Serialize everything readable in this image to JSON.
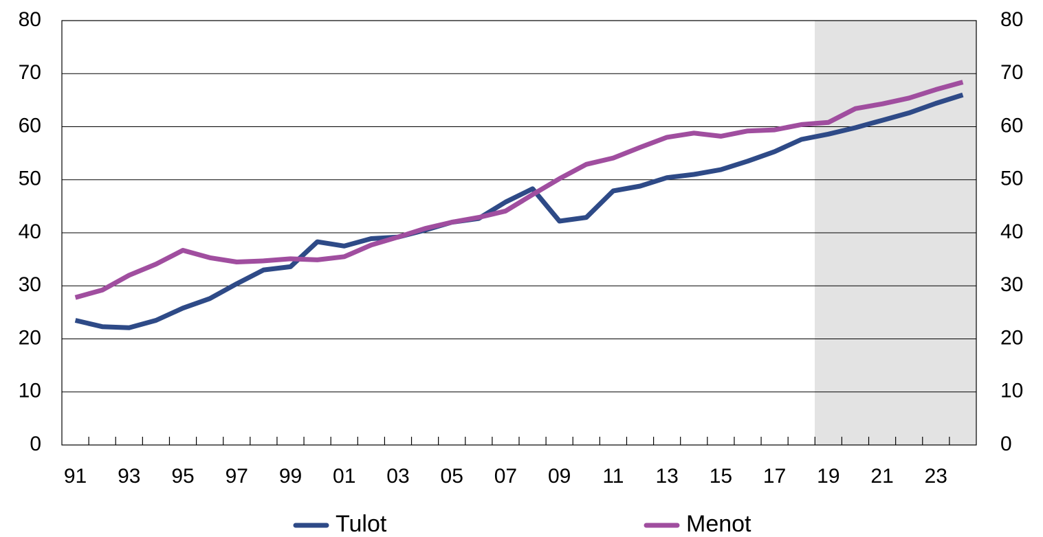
{
  "chart_data": {
    "type": "line",
    "categories": [
      "91",
      null,
      "93",
      null,
      "95",
      null,
      "97",
      null,
      "99",
      null,
      "01",
      null,
      "03",
      null,
      "05",
      null,
      "07",
      null,
      "09",
      null,
      "11",
      null,
      "13",
      null,
      "15",
      null,
      "17",
      null,
      "19",
      null,
      "21",
      null,
      "23",
      null
    ],
    "series": [
      {
        "name": "Tulot",
        "color": "#2e4a87",
        "values": [
          23.5,
          22.3,
          22.1,
          23.5,
          25.8,
          27.6,
          30.4,
          33.0,
          33.6,
          38.3,
          37.5,
          38.9,
          39.2,
          40.5,
          42.0,
          42.7,
          45.8,
          48.3,
          42.2,
          42.9,
          47.9,
          48.8,
          50.4,
          51.0,
          51.9,
          53.5,
          55.3,
          57.6,
          58.6,
          59.8,
          61.2,
          62.6,
          64.4,
          66.0
        ]
      },
      {
        "name": "Menot",
        "color": "#a04e9f",
        "values": [
          27.8,
          29.2,
          32.0,
          34.1,
          36.7,
          35.3,
          34.5,
          34.7,
          35.1,
          34.9,
          35.5,
          37.7,
          39.2,
          40.8,
          42.0,
          42.9,
          44.1,
          47.2,
          50.2,
          52.9,
          54.1,
          56.1,
          58.0,
          58.8,
          58.2,
          59.2,
          59.4,
          60.4,
          60.8,
          63.4,
          64.3,
          65.4,
          67.0,
          68.4
        ]
      }
    ],
    "ylim": [
      0,
      80
    ],
    "yticks": [
      0,
      10,
      20,
      30,
      40,
      50,
      60,
      70,
      80
    ],
    "y2lim": [
      0,
      80
    ],
    "y2ticks": [
      0,
      10,
      20,
      30,
      40,
      50,
      60,
      70,
      80
    ],
    "grid": true,
    "legend": "bottom"
  }
}
